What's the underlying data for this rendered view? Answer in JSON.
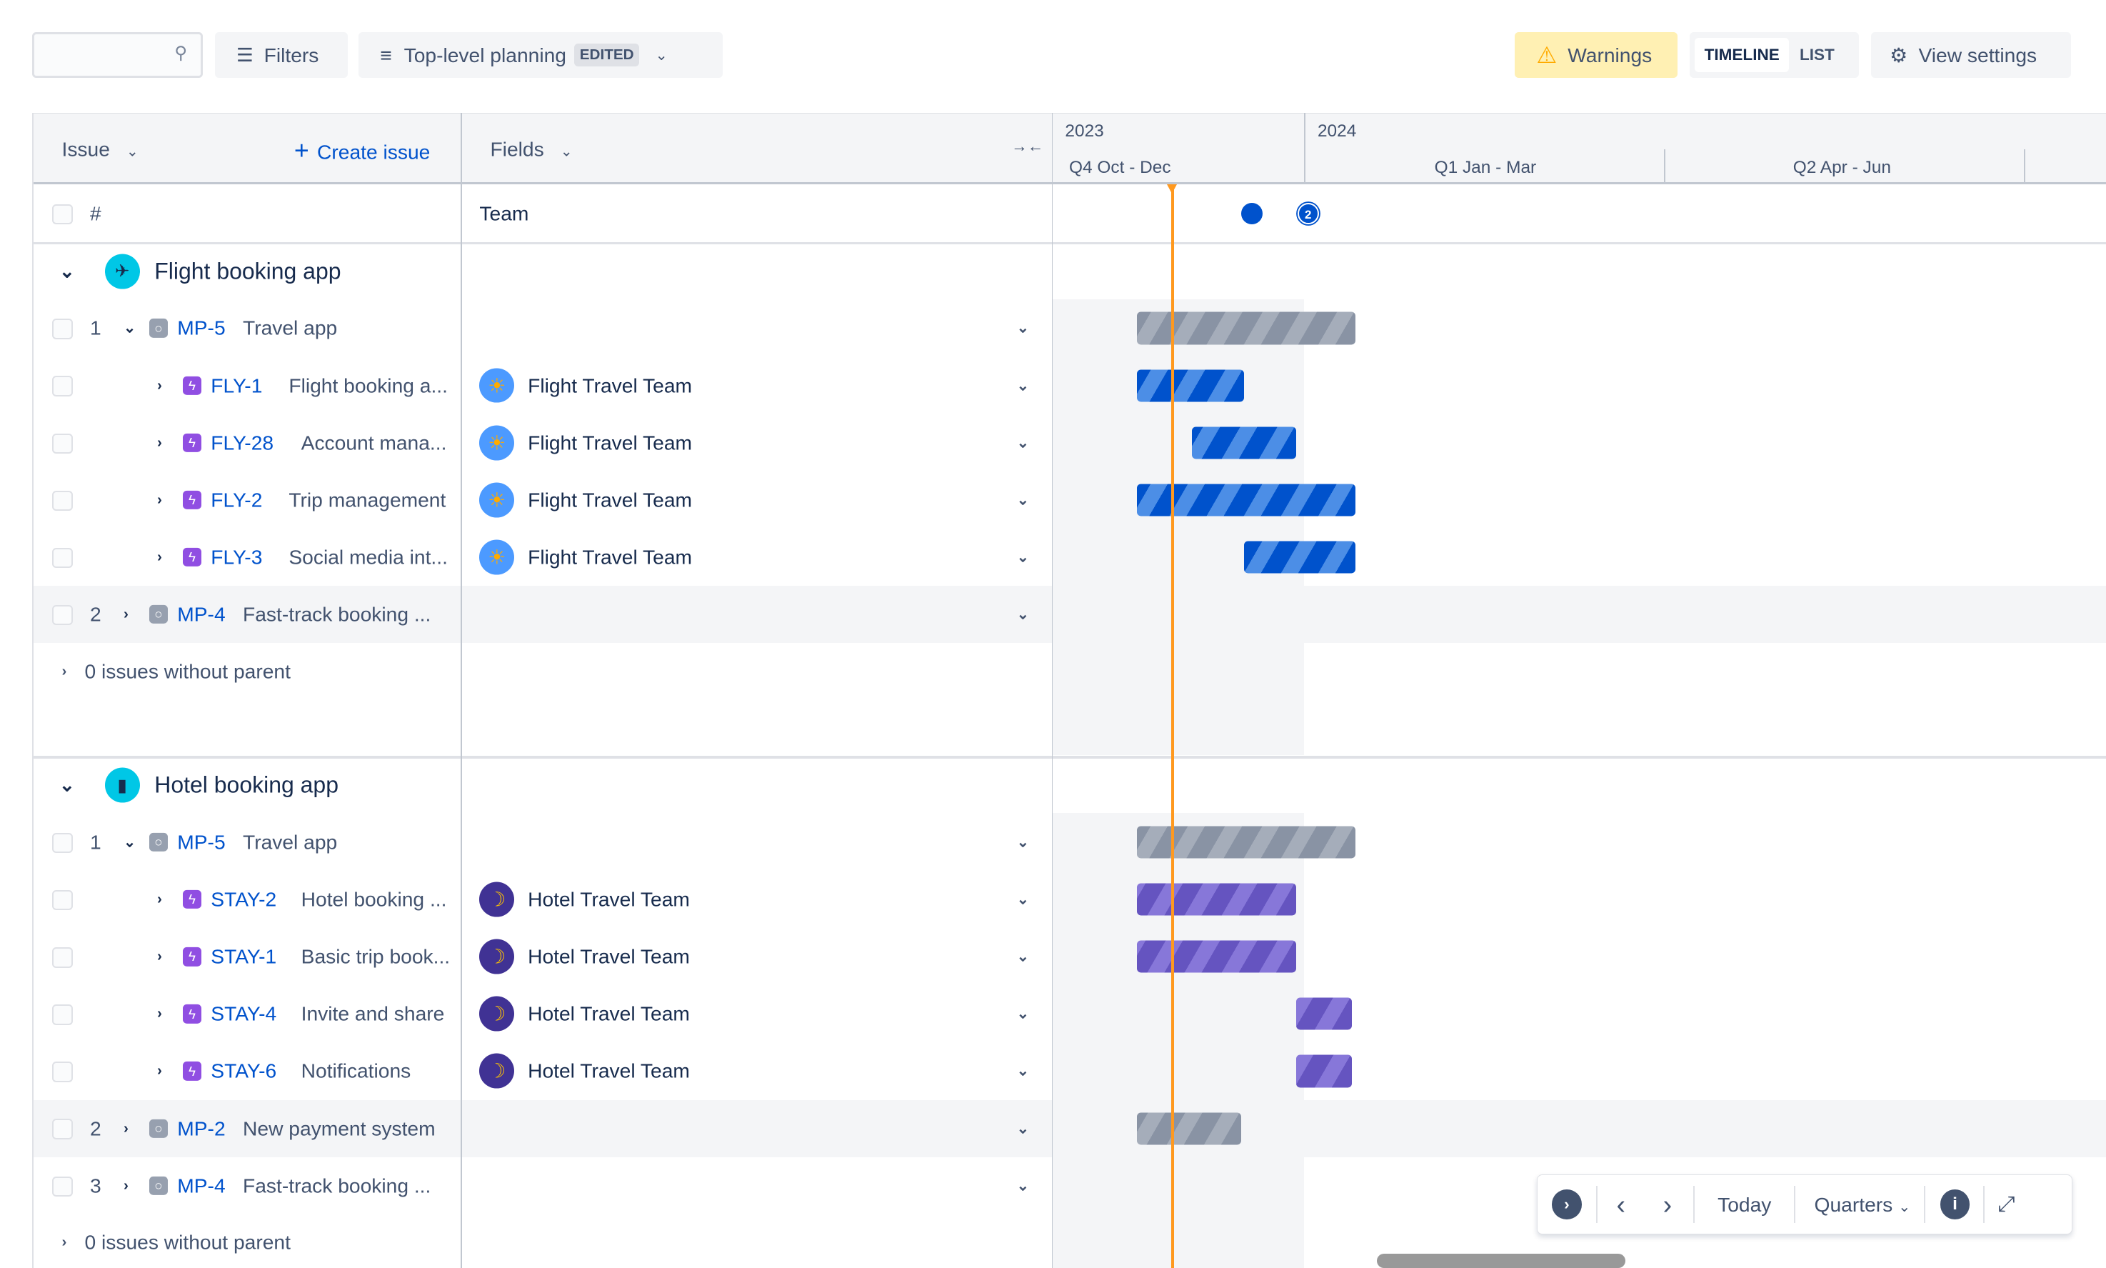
{
  "toolbar": {
    "search_placeholder": "",
    "filters": "Filters",
    "view_name": "Top-level planning",
    "view_badge": "EDITED",
    "warnings": "Warnings",
    "timeline": "TIMELINE",
    "list": "LIST",
    "view_settings": "View settings"
  },
  "header": {
    "issue": "Issue",
    "create_issue": "Create issue",
    "fields": "Fields",
    "year1": "2023",
    "year2": "2024",
    "q4": "Q4 Oct - Dec",
    "q1": "Q1 Jan - Mar",
    "q2": "Q2 Apr - Jun"
  },
  "subheader": {
    "hash": "#",
    "team": "Team",
    "marker_count": "2"
  },
  "timeline": {
    "today": "2023-11-14",
    "markers": [
      "2023-12-13",
      "2024-01-02"
    ]
  },
  "colors": {
    "accent": "#0052cc",
    "today": "#ff991f",
    "parent_bar": "#8993a4",
    "flight_bar": "#0052cc",
    "hotel_bar": "#6554c0",
    "warning_bg": "#fff0b3"
  },
  "groups": [
    {
      "title": "Flight booking app",
      "icon": "airplane-icon",
      "rows": [
        {
          "num": "1",
          "level": 1,
          "expanded": true,
          "type": "initiative",
          "key": "MP-5",
          "title": "Travel app",
          "team": "",
          "bar": {
            "start": "2023-11-01",
            "end": "2024-01-14",
            "color": "grey"
          }
        },
        {
          "num": "",
          "level": 2,
          "type": "epic",
          "key": "FLY-1",
          "title": "Flight booking a...",
          "team": "Flight Travel Team",
          "avatar": "sun",
          "bar": {
            "start": "2023-11-01",
            "end": "2023-12-10",
            "color": "blue"
          }
        },
        {
          "num": "",
          "level": 2,
          "type": "epic",
          "key": "FLY-28",
          "title": "Account mana...",
          "team": "Flight Travel Team",
          "avatar": "sun",
          "bar": {
            "start": "2023-11-21",
            "end": "2023-12-29",
            "color": "blue"
          }
        },
        {
          "num": "",
          "level": 2,
          "type": "epic",
          "key": "FLY-2",
          "title": "Trip management",
          "team": "Flight Travel Team",
          "avatar": "sun",
          "bar": {
            "start": "2023-11-01",
            "end": "2024-01-14",
            "color": "blue"
          }
        },
        {
          "num": "",
          "level": 2,
          "type": "epic",
          "key": "FLY-3",
          "title": "Social media int...",
          "team": "Flight Travel Team",
          "avatar": "sun",
          "bar": {
            "start": "2023-12-10",
            "end": "2024-01-14",
            "color": "blue"
          }
        },
        {
          "num": "2",
          "level": 1,
          "expanded": false,
          "type": "initiative",
          "key": "MP-4",
          "title": "Fast-track booking ...",
          "team": "",
          "shaded": true
        }
      ],
      "without_parent": "0 issues without parent"
    },
    {
      "title": "Hotel booking app",
      "icon": "hotel-icon",
      "rows": [
        {
          "num": "1",
          "level": 1,
          "expanded": true,
          "type": "initiative",
          "key": "MP-5",
          "title": "Travel app",
          "team": "",
          "bar": {
            "start": "2023-11-01",
            "end": "2024-01-14",
            "color": "grey"
          }
        },
        {
          "num": "",
          "level": 2,
          "type": "epic",
          "key": "STAY-2",
          "title": "Hotel booking ...",
          "team": "Hotel Travel Team",
          "avatar": "moon",
          "bar": {
            "start": "2023-11-01",
            "end": "2023-12-29",
            "color": "purple"
          }
        },
        {
          "num": "",
          "level": 2,
          "type": "epic",
          "key": "STAY-1",
          "title": "Basic trip book...",
          "team": "Hotel Travel Team",
          "avatar": "moon",
          "bar": {
            "start": "2023-11-01",
            "end": "2023-12-29",
            "color": "purple"
          }
        },
        {
          "num": "",
          "level": 2,
          "type": "epic",
          "key": "STAY-4",
          "title": "Invite and share",
          "team": "Hotel Travel Team",
          "avatar": "moon",
          "bar": {
            "start": "2023-12-29",
            "end": "2024-01-13",
            "color": "purple"
          }
        },
        {
          "num": "",
          "level": 2,
          "type": "epic",
          "key": "STAY-6",
          "title": "Notifications",
          "team": "Hotel Travel Team",
          "avatar": "moon",
          "bar": {
            "start": "2023-12-29",
            "end": "2024-01-13",
            "color": "purple"
          }
        },
        {
          "num": "2",
          "level": 1,
          "expanded": false,
          "type": "initiative",
          "key": "MP-2",
          "title": "New payment system",
          "team": "",
          "shaded": true,
          "bar": {
            "start": "2023-11-01",
            "end": "2023-12-09",
            "color": "grey"
          }
        },
        {
          "num": "3",
          "level": 1,
          "expanded": false,
          "type": "initiative",
          "key": "MP-4",
          "title": "Fast-track booking ...",
          "team": ""
        }
      ],
      "without_parent": "0 issues without parent"
    }
  ],
  "controls": {
    "today": "Today",
    "scale": "Quarters"
  }
}
